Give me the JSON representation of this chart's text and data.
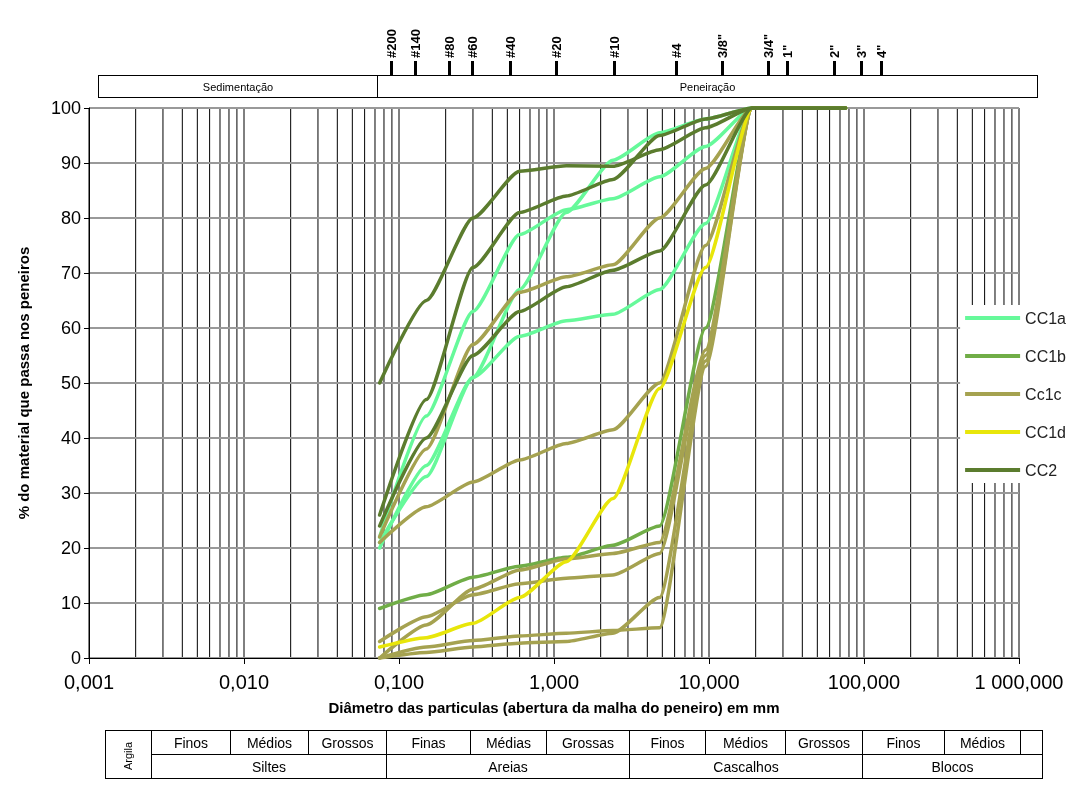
{
  "chart_data": {
    "type": "line",
    "xlabel": "Diâmetro das particulas (abertura da malha do peneiro) em mm",
    "ylabel": "% do material que passa nos peneiros",
    "x": [
      0.075,
      0.15,
      0.3,
      0.6,
      1.2,
      2.4,
      4.8,
      9.5,
      19,
      76
    ],
    "series": [
      {
        "name": "CC1a",
        "color": "#66f99a",
        "values": [
          22,
          44,
          63,
          77,
          81.5,
          83.5,
          87.5,
          93,
          100,
          100
        ]
      },
      {
        "color": "#66f99a",
        "values": [
          20,
          35,
          51,
          67,
          81,
          90.5,
          95.5,
          98,
          100,
          100
        ]
      },
      {
        "color": "#66f99a",
        "values": [
          21,
          33,
          51,
          58.5,
          61.3,
          62.5,
          67,
          79,
          100,
          100
        ]
      },
      {
        "name": "CC1b",
        "color": "#70ad47",
        "values": [
          9,
          11.5,
          14.7,
          16.7,
          18.3,
          20.5,
          24,
          60,
          100,
          100
        ]
      },
      {
        "name": "Cc1c",
        "color": "#a5a250",
        "values": [
          22,
          38,
          57,
          66.5,
          69.3,
          71.5,
          80,
          89,
          100,
          100
        ]
      },
      {
        "color": "#a5a250",
        "values": [
          21,
          27.5,
          32,
          36,
          39,
          41.5,
          50,
          75,
          100,
          100
        ]
      },
      {
        "color": "#a5a250",
        "values": [
          3,
          7.5,
          11.5,
          13.5,
          14.5,
          15.1,
          19,
          55,
          100,
          100
        ]
      },
      {
        "color": "#a5a250",
        "values": [
          0,
          6,
          12.5,
          16,
          18,
          19,
          21,
          56,
          100,
          100
        ]
      },
      {
        "color": "#a5a250",
        "values": [
          0,
          2,
          3.2,
          4,
          4.5,
          5,
          5.5,
          53,
          100,
          100
        ]
      },
      {
        "color": "#a5a250",
        "values": [
          0,
          1,
          2,
          2.7,
          3,
          4.5,
          11,
          54,
          100,
          100
        ]
      },
      {
        "name": "CC1d",
        "color": "#e8e60a",
        "values": [
          2,
          3.7,
          6.3,
          11,
          17.5,
          29,
          49,
          71,
          100,
          100
        ]
      },
      {
        "name": "CC2",
        "color": "#5b7c2e",
        "values": [
          50,
          65,
          80,
          88.5,
          89.5,
          89.4,
          92.4,
          96.4,
          100,
          100
        ]
      },
      {
        "color": "#5b7c2e",
        "values": [
          26,
          47,
          71,
          81,
          84,
          87,
          95,
          98,
          100,
          100
        ]
      },
      {
        "color": "#5b7c2e",
        "values": [
          24,
          40,
          55,
          63,
          67.5,
          70.5,
          74,
          86,
          100,
          100
        ]
      }
    ],
    "log": "x",
    "xlim": [
      0.001,
      1000
    ],
    "xticks": [
      {
        "value": 0.001,
        "label": "0,001"
      },
      {
        "value": 0.002,
        "label": null
      },
      {
        "value": 0.003,
        "label": null
      },
      {
        "value": 0.004,
        "label": null
      },
      {
        "value": 0.005,
        "label": null
      },
      {
        "value": 0.006,
        "label": null
      },
      {
        "value": 0.007,
        "label": null
      },
      {
        "value": 0.008,
        "label": null
      },
      {
        "value": 0.009,
        "label": null
      },
      {
        "value": 0.01,
        "label": "0,010"
      },
      {
        "value": 0.02,
        "label": null
      },
      {
        "value": 0.03,
        "label": null
      },
      {
        "value": 0.04,
        "label": null
      },
      {
        "value": 0.05,
        "label": null
      },
      {
        "value": 0.06,
        "label": null
      },
      {
        "value": 0.07,
        "label": null
      },
      {
        "value": 0.08,
        "label": null
      },
      {
        "value": 0.09,
        "label": null
      },
      {
        "value": 0.1,
        "label": "0,100"
      },
      {
        "value": 0.2,
        "label": null
      },
      {
        "value": 0.3,
        "label": null
      },
      {
        "value": 0.4,
        "label": null
      },
      {
        "value": 0.5,
        "label": null
      },
      {
        "value": 0.6,
        "label": null
      },
      {
        "value": 0.7,
        "label": null
      },
      {
        "value": 0.8,
        "label": null
      },
      {
        "value": 0.9,
        "label": null
      },
      {
        "value": 1,
        "label": "1,000"
      },
      {
        "value": 2,
        "label": null
      },
      {
        "value": 3,
        "label": null
      },
      {
        "value": 4,
        "label": null
      },
      {
        "value": 5,
        "label": null
      },
      {
        "value": 6,
        "label": null
      },
      {
        "value": 7,
        "label": null
      },
      {
        "value": 8,
        "label": null
      },
      {
        "value": 9,
        "label": null
      },
      {
        "value": 10,
        "label": "10,000"
      },
      {
        "value": 20,
        "label": null
      },
      {
        "value": 30,
        "label": null
      },
      {
        "value": 40,
        "label": null
      },
      {
        "value": 50,
        "label": null
      },
      {
        "value": 60,
        "label": null
      },
      {
        "value": 70,
        "label": null
      },
      {
        "value": 80,
        "label": null
      },
      {
        "value": 90,
        "label": null
      },
      {
        "value": 100,
        "label": "100,000"
      },
      {
        "value": 200,
        "label": null
      },
      {
        "value": 300,
        "label": null
      },
      {
        "value": 400,
        "label": null
      },
      {
        "value": 500,
        "label": null
      },
      {
        "value": 600,
        "label": null
      },
      {
        "value": 700,
        "label": null
      },
      {
        "value": 800,
        "label": null
      },
      {
        "value": 900,
        "label": null
      },
      {
        "value": 1000,
        "label": "1 000,000"
      }
    ],
    "ylim": [
      0,
      100
    ],
    "yticks": [
      0,
      10,
      20,
      30,
      40,
      50,
      60,
      70,
      80,
      90,
      100
    ],
    "grid": true,
    "legend": "right",
    "marker": "none",
    "line_style": "solid",
    "annotations": [
      "#200",
      "#140",
      "#80",
      "#60",
      "#40",
      "#20",
      "#10",
      "#4",
      "3/8\"",
      "3/4\"",
      "1\"",
      "2\"",
      "3\"",
      "4\"",
      "Sedimentação",
      "Peneiração",
      "Argila",
      "Finos",
      "Médios",
      "Grossos",
      "Finas",
      "Médias",
      "Grossas",
      "Finos",
      "Médios",
      "Grossos",
      "Finos",
      "Médios",
      "Siltes",
      "Areias",
      "Cascalhos",
      "Blocos"
    ]
  }
}
